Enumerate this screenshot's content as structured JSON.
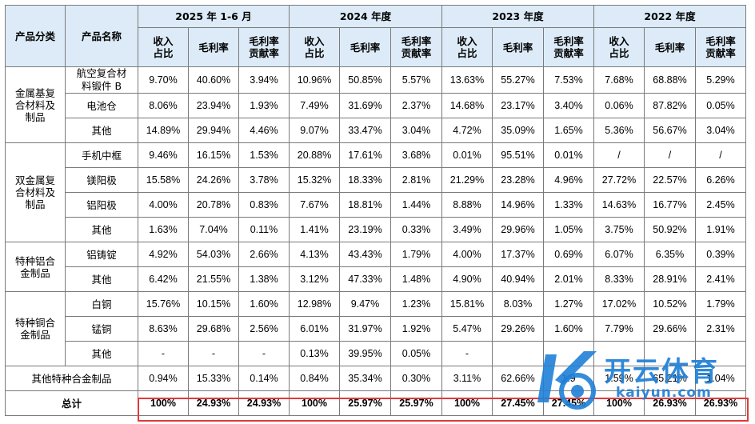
{
  "header": {
    "category": "产品分类",
    "product": "产品名称",
    "periods": [
      "2025 年 1-6 月",
      "2024 年度",
      "2023 年度",
      "2022 年度"
    ],
    "metric_revenue": "收入\n占比",
    "metric_margin": "毛利率",
    "metric_contribution": "毛利率\n贡献率"
  },
  "groups": [
    {
      "category": "金属基复\n合材料及\n制品",
      "rows": [
        {
          "product": "航空复合材\n料锻件 B",
          "values": [
            "9.70%",
            "40.60%",
            "3.94%",
            "10.96%",
            "50.85%",
            "5.57%",
            "13.63%",
            "55.27%",
            "7.53%",
            "7.68%",
            "68.88%",
            "5.29%"
          ]
        },
        {
          "product": "电池仓",
          "values": [
            "8.06%",
            "23.94%",
            "1.93%",
            "7.49%",
            "31.69%",
            "2.37%",
            "14.68%",
            "23.17%",
            "3.40%",
            "0.06%",
            "87.82%",
            "0.05%"
          ]
        },
        {
          "product": "其他",
          "values": [
            "14.89%",
            "29.94%",
            "4.46%",
            "9.07%",
            "33.47%",
            "3.04%",
            "4.72%",
            "35.09%",
            "1.65%",
            "5.36%",
            "56.67%",
            "3.04%"
          ]
        }
      ]
    },
    {
      "category": "双金属复\n合材料及\n制品",
      "rows": [
        {
          "product": "手机中框",
          "values": [
            "9.46%",
            "16.15%",
            "1.53%",
            "20.88%",
            "17.61%",
            "3.68%",
            "0.01%",
            "95.51%",
            "0.01%",
            "/",
            "/",
            "/"
          ]
        },
        {
          "product": "镁阳极",
          "values": [
            "15.58%",
            "24.26%",
            "3.78%",
            "15.32%",
            "18.33%",
            "2.81%",
            "21.29%",
            "23.28%",
            "4.96%",
            "27.72%",
            "22.57%",
            "6.26%"
          ]
        },
        {
          "product": "铝阳极",
          "values": [
            "4.00%",
            "20.78%",
            "0.83%",
            "7.67%",
            "18.81%",
            "1.44%",
            "8.88%",
            "14.96%",
            "1.33%",
            "14.63%",
            "16.77%",
            "2.45%"
          ]
        },
        {
          "product": "其他",
          "values": [
            "1.63%",
            "7.04%",
            "0.11%",
            "1.41%",
            "23.19%",
            "0.33%",
            "3.49%",
            "29.96%",
            "1.05%",
            "3.75%",
            "50.92%",
            "1.91%"
          ]
        }
      ]
    },
    {
      "category": "特种铝合\n金制品",
      "rows": [
        {
          "product": "铝铸锭",
          "values": [
            "4.92%",
            "54.03%",
            "2.66%",
            "4.13%",
            "43.43%",
            "1.79%",
            "4.00%",
            "17.37%",
            "0.69%",
            "6.07%",
            "6.35%",
            "0.39%"
          ]
        },
        {
          "product": "其他",
          "values": [
            "6.42%",
            "21.55%",
            "1.38%",
            "3.12%",
            "47.33%",
            "1.48%",
            "4.90%",
            "40.94%",
            "2.01%",
            "8.33%",
            "28.91%",
            "2.41%"
          ]
        }
      ]
    },
    {
      "category": "特种铜合\n金制品",
      "rows": [
        {
          "product": "白铜",
          "values": [
            "15.76%",
            "10.15%",
            "1.60%",
            "12.98%",
            "9.47%",
            "1.23%",
            "15.81%",
            "8.03%",
            "1.27%",
            "17.02%",
            "10.52%",
            "1.79%"
          ]
        },
        {
          "product": "锰铜",
          "values": [
            "8.63%",
            "29.68%",
            "2.56%",
            "6.01%",
            "31.97%",
            "1.92%",
            "5.47%",
            "29.26%",
            "1.60%",
            "7.79%",
            "29.66%",
            "2.31%"
          ]
        },
        {
          "product": "其他",
          "values": [
            "-",
            "-",
            "-",
            "0.13%",
            "39.95%",
            "0.05%",
            "-",
            "",
            "",
            "",
            "",
            ""
          ]
        }
      ]
    }
  ],
  "other_row": {
    "label": "其他特种合金制品",
    "values": [
      "0.94%",
      "15.33%",
      "0.14%",
      "0.84%",
      "35.34%",
      "0.30%",
      "3.11%",
      "62.66%",
      "1.9",
      "1.59%",
      "65.21%",
      "1.04%"
    ]
  },
  "total_row": {
    "label": "总计",
    "values": [
      "100%",
      "24.93%",
      "24.93%",
      "100%",
      "25.97%",
      "25.97%",
      "100%",
      "27.45%",
      "27.45%",
      "100%",
      "26.93%",
      "26.93%"
    ]
  },
  "watermark": {
    "brand": "开云体育",
    "url": "kaiyun.com",
    "logo_icon": "k-ball-logo-icon",
    "color": "#1f7fd6"
  },
  "colors": {
    "header_bg": "#dcebf7",
    "highlight": "#e23a3a"
  }
}
